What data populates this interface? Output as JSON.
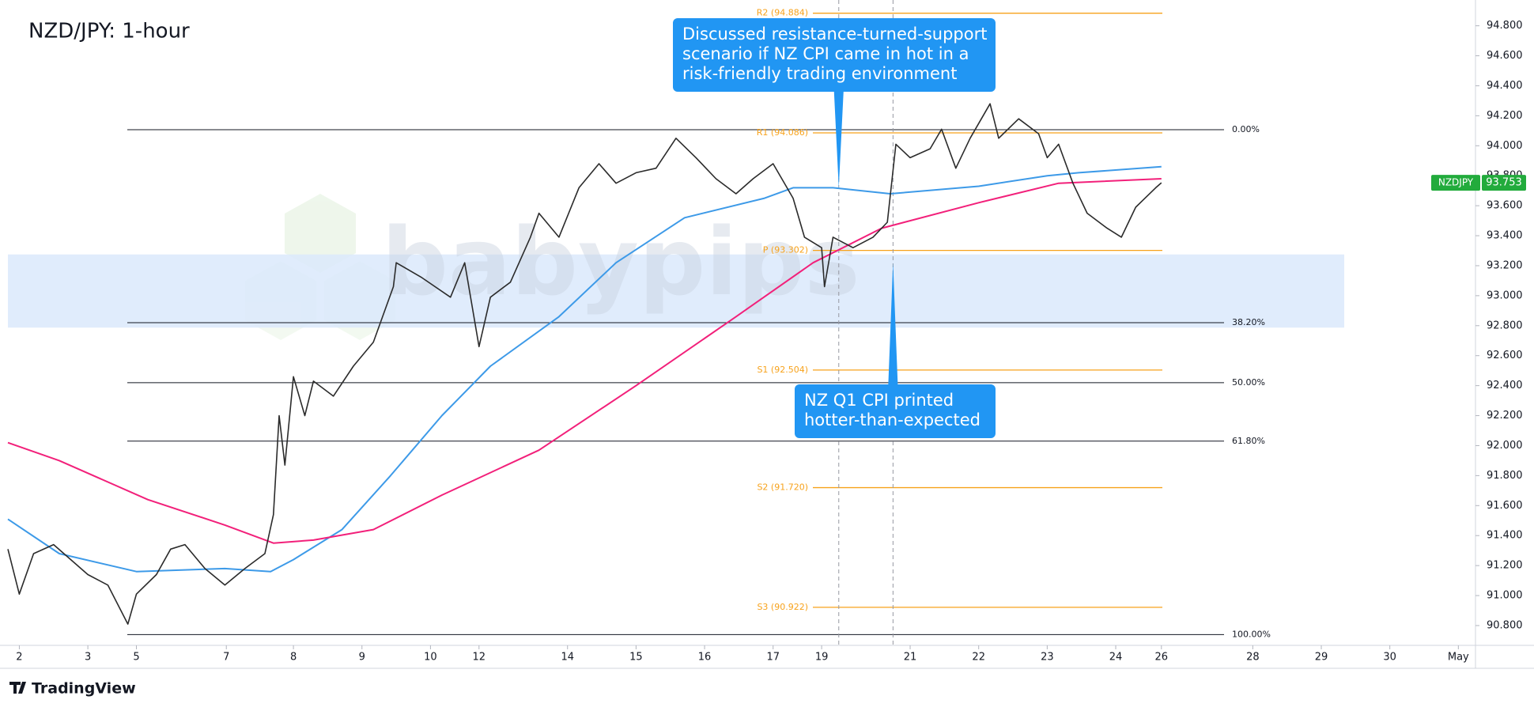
{
  "chart_data": {
    "type": "line",
    "title": "NZD/JPY: 1-hour",
    "watermark": "babypips",
    "brand": "TradingView",
    "xlim": [
      0,
      514
    ],
    "ylim": [
      90.668,
      94.972
    ],
    "xticks": [
      {
        "value": 4,
        "label": "2"
      },
      {
        "value": 28,
        "label": "3"
      },
      {
        "value": 45,
        "label": "5"
      },
      {
        "value": 76.5,
        "label": "7"
      },
      {
        "value": 100,
        "label": "8"
      },
      {
        "value": 124,
        "label": "9"
      },
      {
        "value": 148,
        "label": "10"
      },
      {
        "value": 165,
        "label": "12"
      },
      {
        "value": 196,
        "label": "14"
      },
      {
        "value": 220,
        "label": "15"
      },
      {
        "value": 244,
        "label": "16"
      },
      {
        "value": 268,
        "label": "17"
      },
      {
        "value": 285,
        "label": "19"
      },
      {
        "value": 316,
        "label": "21"
      },
      {
        "value": 340,
        "label": "22"
      },
      {
        "value": 364,
        "label": "23"
      },
      {
        "value": 388,
        "label": "24"
      },
      {
        "value": 404,
        "label": "26"
      },
      {
        "value": 436,
        "label": "28"
      },
      {
        "value": 460,
        "label": "29"
      },
      {
        "value": 484,
        "label": "30"
      },
      {
        "value": 508,
        "label": "May"
      }
    ],
    "yticks": [
      {
        "value": 90.8,
        "label": "90.800"
      },
      {
        "value": 91.0,
        "label": "91.000"
      },
      {
        "value": 91.2,
        "label": "91.200"
      },
      {
        "value": 91.4,
        "label": "91.400"
      },
      {
        "value": 91.6,
        "label": "91.600"
      },
      {
        "value": 91.8,
        "label": "91.800"
      },
      {
        "value": 92.0,
        "label": "92.000"
      },
      {
        "value": 92.2,
        "label": "92.200"
      },
      {
        "value": 92.4,
        "label": "92.400"
      },
      {
        "value": 92.6,
        "label": "92.600"
      },
      {
        "value": 92.8,
        "label": "92.800"
      },
      {
        "value": 93.0,
        "label": "93.000"
      },
      {
        "value": 93.2,
        "label": "93.200"
      },
      {
        "value": 93.4,
        "label": "93.400"
      },
      {
        "value": 93.6,
        "label": "93.600"
      },
      {
        "value": 93.8,
        "label": "93.800"
      },
      {
        "value": 94.0,
        "label": "94.000"
      },
      {
        "value": 94.2,
        "label": "94.200"
      },
      {
        "value": 94.4,
        "label": "94.400"
      },
      {
        "value": 94.6,
        "label": "94.600"
      },
      {
        "value": 94.8,
        "label": "94.800"
      }
    ],
    "series": [
      {
        "name": "NZDJPY",
        "color": "#2b2b2b",
        "tag_color": "#22ab3c",
        "x": [
          0,
          4,
          9,
          16,
          28,
          35,
          42,
          45,
          52,
          57,
          62,
          69,
          76,
          83,
          90,
          93,
          95,
          97,
          100,
          104,
          107,
          114,
          121,
          128,
          135,
          136,
          145,
          155,
          160,
          165,
          169,
          176,
          183,
          186,
          193,
          200,
          207,
          213,
          220,
          227,
          234,
          241,
          248,
          255,
          261,
          268,
          275,
          279,
          285,
          286,
          289,
          296,
          303,
          308,
          311,
          316,
          323,
          327,
          332,
          337,
          344,
          347,
          354,
          361,
          364,
          368,
          373,
          378,
          385,
          390,
          395,
          402,
          404
        ],
        "values": [
          91.31,
          91.01,
          91.28,
          91.34,
          91.14,
          91.07,
          90.81,
          91.01,
          91.14,
          91.31,
          91.34,
          91.18,
          91.07,
          91.18,
          91.28,
          91.54,
          92.2,
          91.87,
          92.46,
          92.2,
          92.43,
          92.33,
          92.53,
          92.69,
          93.06,
          93.22,
          93.12,
          92.99,
          93.22,
          92.66,
          92.99,
          93.09,
          93.39,
          93.55,
          93.39,
          93.72,
          93.88,
          93.75,
          93.82,
          93.85,
          94.05,
          93.92,
          93.78,
          93.68,
          93.78,
          93.88,
          93.65,
          93.39,
          93.32,
          93.06,
          93.39,
          93.32,
          93.39,
          93.49,
          94.01,
          93.92,
          93.98,
          94.11,
          93.85,
          94.05,
          94.28,
          94.05,
          94.18,
          94.08,
          93.92,
          94.01,
          93.75,
          93.55,
          93.45,
          93.39,
          93.59,
          93.72,
          93.753
        ]
      }
    ],
    "moving_averages": [
      {
        "color": "#3d9ae8",
        "x": [
          0,
          18,
          45,
          76,
          92,
          100,
          117,
          134,
          152,
          169,
          193,
          213,
          237,
          265,
          275,
          289,
          309,
          340,
          364,
          375,
          404
        ],
        "values": [
          91.51,
          91.28,
          91.16,
          91.18,
          91.16,
          91.24,
          91.44,
          91.8,
          92.2,
          92.53,
          92.86,
          93.22,
          93.52,
          93.65,
          93.72,
          93.72,
          93.68,
          93.73,
          93.8,
          93.82,
          93.86
        ]
      },
      {
        "color": "#f2207a",
        "x": [
          0,
          18,
          49,
          76,
          93,
          107,
          128,
          152,
          186,
          220,
          255,
          282,
          306,
          340,
          368,
          404
        ],
        "values": [
          92.02,
          91.9,
          91.64,
          91.47,
          91.35,
          91.37,
          91.44,
          91.67,
          91.97,
          92.4,
          92.86,
          93.22,
          93.45,
          93.62,
          93.75,
          93.78
        ]
      }
    ],
    "pivot_color": "#f7a21b",
    "pivot_levels": [
      {
        "label": "R2 (94.884)",
        "value": 94.884
      },
      {
        "label": "R1 (94.086)",
        "value": 94.086
      },
      {
        "label": "P (93.302)",
        "value": 93.302
      },
      {
        "label": "S1 (92.504)",
        "value": 92.504
      },
      {
        "label": "S2 (91.720)",
        "value": 91.72
      },
      {
        "label": "S3 (90.922)",
        "value": 90.922
      }
    ],
    "fib_levels": [
      {
        "label": "0.00%",
        "value": 94.107
      },
      {
        "label": "38.20%",
        "value": 92.82
      },
      {
        "label": "50.00%",
        "value": 92.42
      },
      {
        "label": "61.80%",
        "value": 92.03
      },
      {
        "label": "100.00%",
        "value": 90.74
      }
    ],
    "zone": {
      "color": "#dbe9fb",
      "range": [
        92.787,
        93.275
      ]
    },
    "event_lines": [
      291,
      310
    ],
    "annotations": [
      {
        "lines": [
          "Discussed resistance-turned-support",
          "scenario if NZ CPI came in hot in a",
          "risk-friendly trading environment"
        ],
        "x": 291,
        "y": 93.72
      },
      {
        "lines": [
          "NZ Q1 CPI printed",
          "hotter-than-expected"
        ],
        "x": 310,
        "y": 93.22
      }
    ]
  }
}
